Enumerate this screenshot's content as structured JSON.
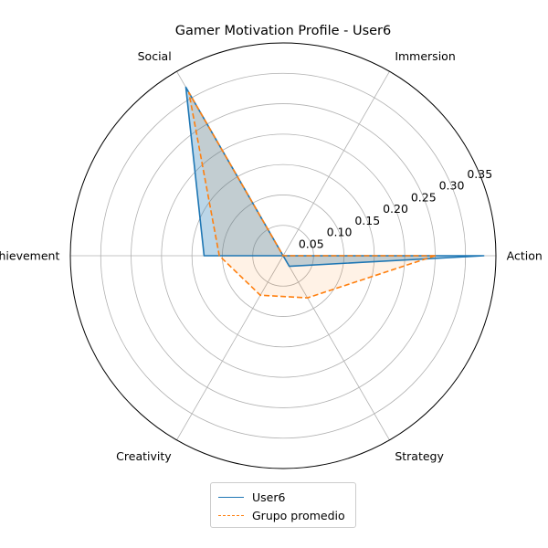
{
  "chart_data": {
    "type": "radar",
    "title": "Gamer Motivation Profile - User6",
    "categories": [
      "Action",
      "Immersion",
      "Social",
      "Achievement",
      "Creativity",
      "Strategy"
    ],
    "rlim": [
      0,
      0.35
    ],
    "rticks": [
      0.05,
      0.1,
      0.15,
      0.2,
      0.25,
      0.3,
      0.35
    ],
    "rtick_labels": [
      "0.05",
      "0.10",
      "0.15",
      "0.20",
      "0.25",
      "0.30",
      "0.35"
    ],
    "grid": true,
    "legend_position": "bottom-center",
    "series": [
      {
        "name": "User6",
        "values": [
          0.33,
          0.0,
          0.32,
          0.13,
          0.0,
          0.02
        ],
        "color": "#1f77b4",
        "linestyle": "solid",
        "fill_alpha": 0.3
      },
      {
        "name": "Grupo promedio",
        "values": [
          0.25,
          0.0,
          0.31,
          0.105,
          0.075,
          0.08
        ],
        "color": "#ff7f0e",
        "linestyle": "dashed",
        "fill_alpha": 0.1
      }
    ]
  }
}
